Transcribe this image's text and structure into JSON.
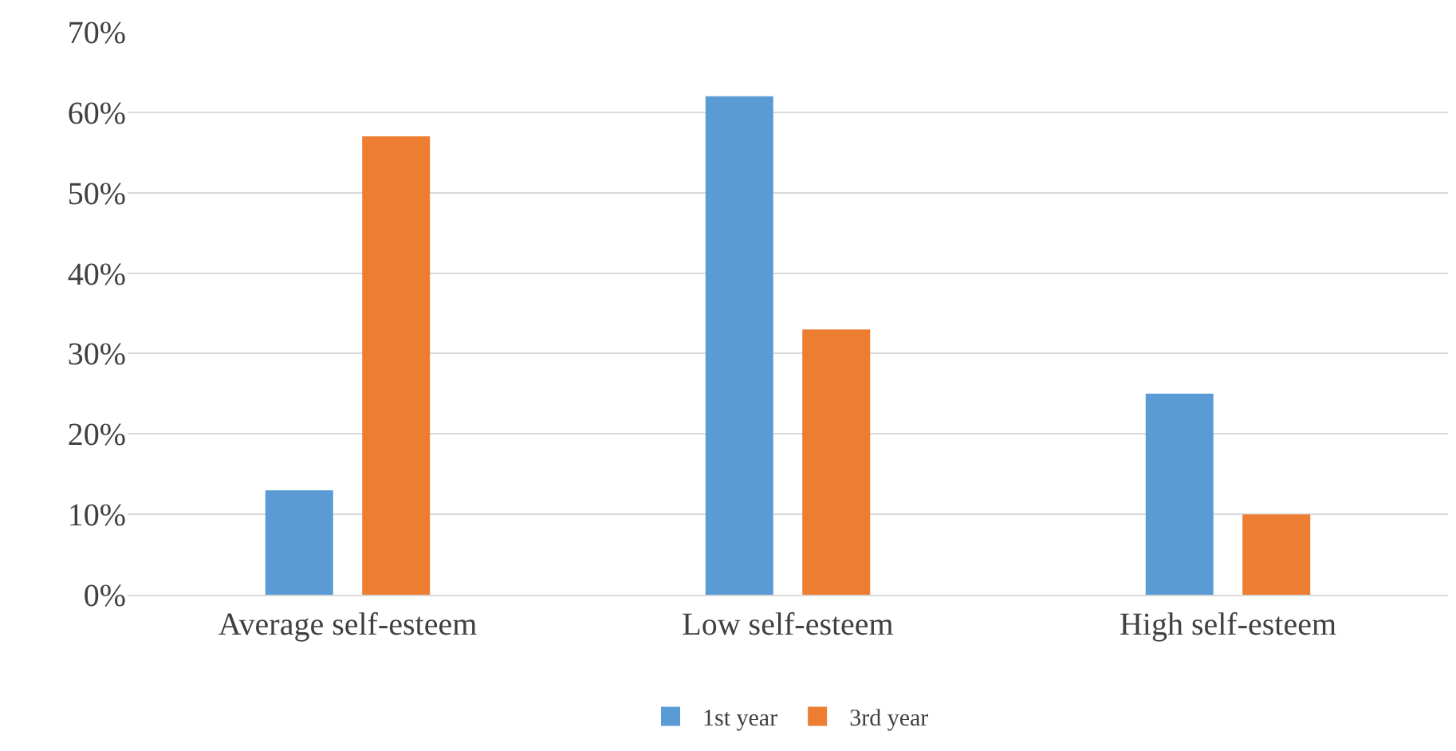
{
  "chart_data": {
    "type": "bar",
    "categories": [
      "Average self-esteem",
      "Low self-esteem",
      "High self-esteem"
    ],
    "series": [
      {
        "name": "1st year",
        "color": "#5b9bd5",
        "values": [
          13,
          62,
          25
        ]
      },
      {
        "name": "3rd year",
        "color": "#ed7d31",
        "values": [
          57,
          33,
          10
        ]
      }
    ],
    "ylim": [
      0,
      70
    ],
    "yticks": [
      {
        "value": 0,
        "label": "0%"
      },
      {
        "value": 10,
        "label": "10%"
      },
      {
        "value": 20,
        "label": "20%"
      },
      {
        "value": 30,
        "label": "30%"
      },
      {
        "value": 40,
        "label": "40%"
      },
      {
        "value": 50,
        "label": "50%"
      },
      {
        "value": 60,
        "label": "60%"
      },
      {
        "value": 70,
        "label": "70%"
      }
    ],
    "grid": "y",
    "legend": "bottom"
  }
}
